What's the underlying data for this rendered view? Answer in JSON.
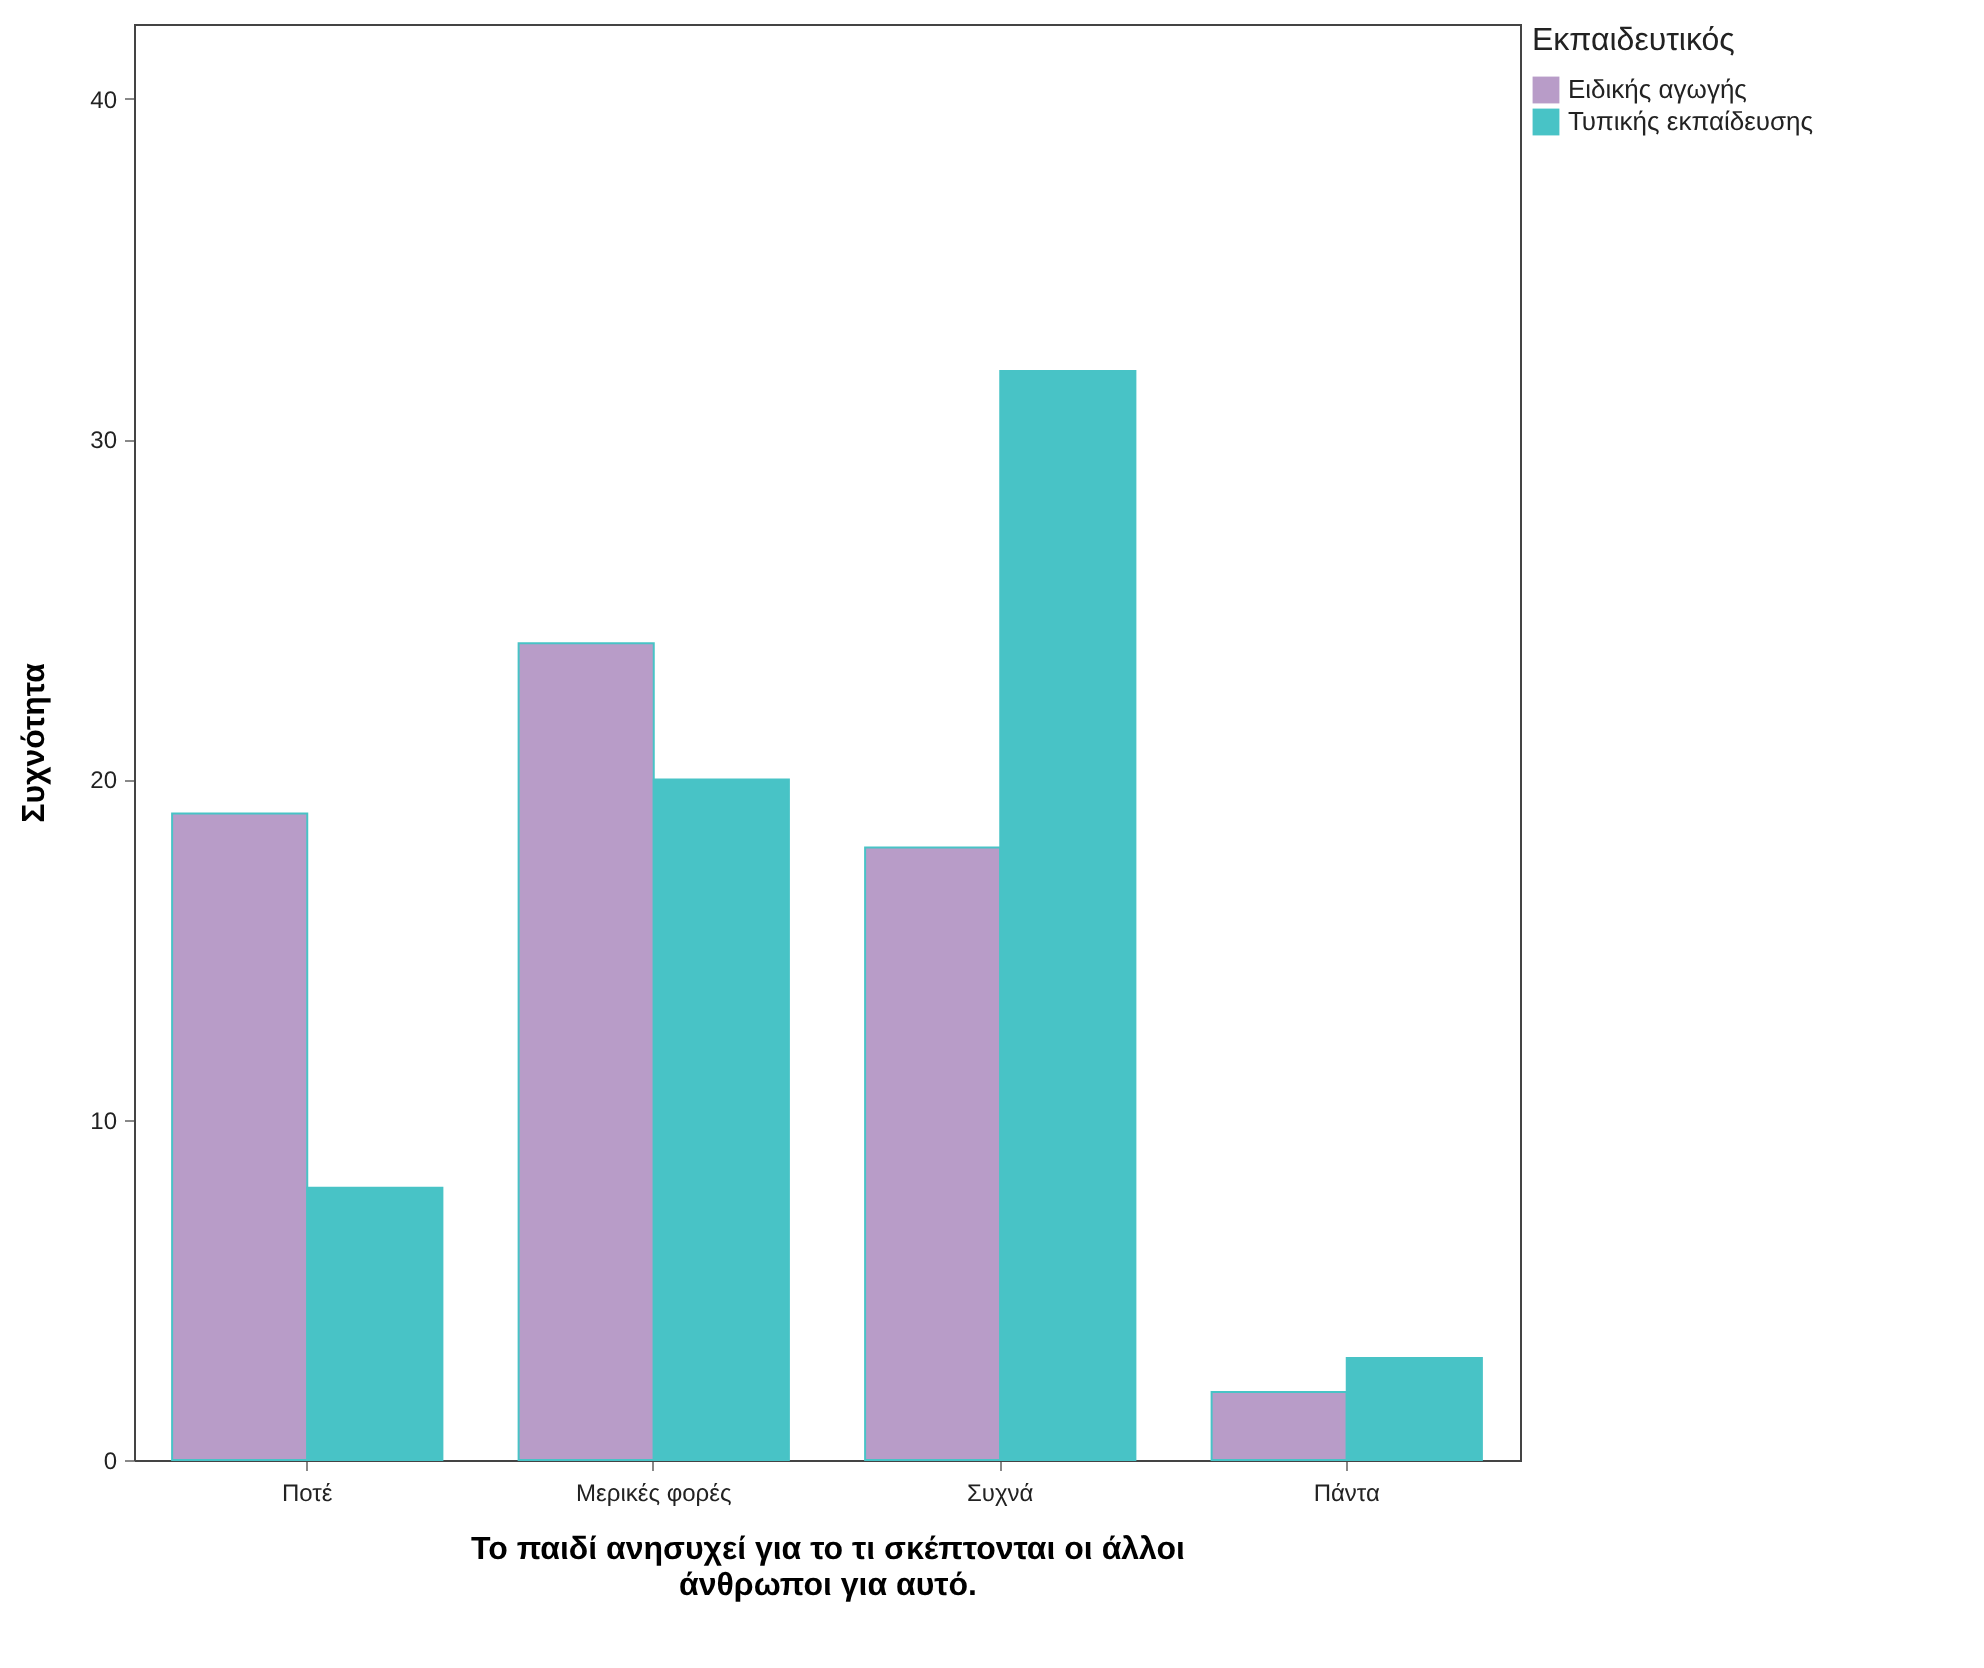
{
  "chart_data": {
    "type": "bar",
    "xlabel": "Το παιδί ανησυχεί για το τι σκέπτονται οι άλλοι άνθρωποι για αυτό.",
    "ylabel": "Συχνότητα",
    "legend_title": "Εκπαιδευτικός",
    "categories": [
      "Ποτέ",
      "Μερικές φορές",
      "Συχνά",
      "Πάντα"
    ],
    "series": [
      {
        "name": "Ειδικής αγωγής",
        "color": "#b89cc8",
        "values": [
          19,
          24,
          18,
          2
        ]
      },
      {
        "name": "Τυπικής εκπαίδευσης",
        "color": "#48c3c6",
        "values": [
          8,
          20,
          32,
          3
        ]
      }
    ],
    "ylim": [
      0,
      42.2
    ],
    "yticks": [
      0,
      10,
      20,
      30,
      40
    ],
    "grid": false,
    "legend": "top right"
  }
}
